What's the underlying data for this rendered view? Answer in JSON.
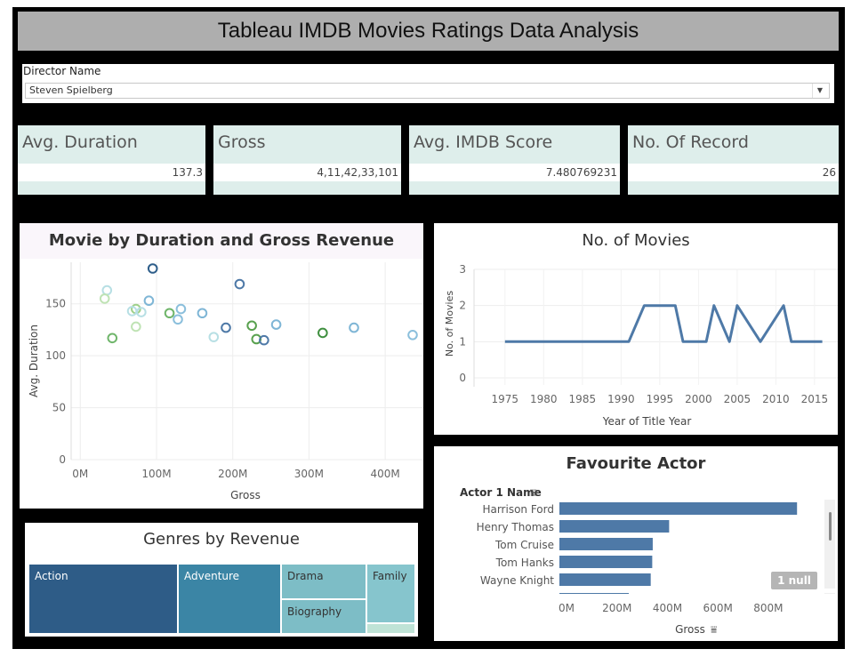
{
  "dashboard": {
    "title": "Tableau IMDB Movies Ratings Data Analysis"
  },
  "filter": {
    "label": "Director Name",
    "value": "Steven Spielberg"
  },
  "kpis": [
    {
      "label": "Avg. Duration",
      "value": "137.3"
    },
    {
      "label": "Gross",
      "value": "4,11,42,33,101"
    },
    {
      "label": "Avg. IMDB Score",
      "value": "7.480769231"
    },
    {
      "label": "No. Of Record",
      "value": "26"
    }
  ],
  "colors": {
    "dark_blue": "#2e5e8a",
    "mid_blue": "#4e79a7",
    "teal": "#3d8fae",
    "light_teal": "#84c3cb",
    "green": "#59a14f",
    "kpi_bg": "#deeeeb"
  },
  "chart_data": [
    {
      "type": "scatter",
      "title": "Movie by Duration and Gross Revenue",
      "xlabel": "Gross",
      "ylabel": "Avg. Duration",
      "x_ticks": [
        "0M",
        "100M",
        "200M",
        "300M",
        "400M"
      ],
      "y_ticks": [
        "0",
        "50",
        "100",
        "150"
      ],
      "xlim": [
        -12,
        450
      ],
      "ylim": [
        0,
        190
      ],
      "grid": true,
      "points": [
        {
          "x": 35,
          "y": 163,
          "color": "#b7dfe4"
        },
        {
          "x": 32,
          "y": 155,
          "color": "#bfe3b4"
        },
        {
          "x": 73,
          "y": 145,
          "color": "#9fd089"
        },
        {
          "x": 68,
          "y": 143,
          "color": "#b7dfe4"
        },
        {
          "x": 80,
          "y": 142,
          "color": "#b7dfe4"
        },
        {
          "x": 90,
          "y": 153,
          "color": "#7fb6d6"
        },
        {
          "x": 95,
          "y": 184,
          "color": "#2e5e8a"
        },
        {
          "x": 73,
          "y": 128,
          "color": "#bfe3b4"
        },
        {
          "x": 42,
          "y": 117,
          "color": "#6fb56a"
        },
        {
          "x": 117,
          "y": 141,
          "color": "#6fb56a"
        },
        {
          "x": 132,
          "y": 145,
          "color": "#8bbfdc"
        },
        {
          "x": 128,
          "y": 135,
          "color": "#8bbfdc"
        },
        {
          "x": 160,
          "y": 141,
          "color": "#7fb6d6"
        },
        {
          "x": 175,
          "y": 118,
          "color": "#b7dfe4"
        },
        {
          "x": 191,
          "y": 127,
          "color": "#4e79a7"
        },
        {
          "x": 209,
          "y": 169,
          "color": "#4e79a7"
        },
        {
          "x": 225,
          "y": 129,
          "color": "#59a14f"
        },
        {
          "x": 231,
          "y": 116,
          "color": "#59a14f"
        },
        {
          "x": 241,
          "y": 115,
          "color": "#4e79a7"
        },
        {
          "x": 257,
          "y": 130,
          "color": "#7fb6d6"
        },
        {
          "x": 318,
          "y": 122,
          "color": "#3f8f3f"
        },
        {
          "x": 359,
          "y": 127,
          "color": "#7fb6d6"
        },
        {
          "x": 436,
          "y": 120,
          "color": "#8bbfdc"
        }
      ]
    },
    {
      "type": "line",
      "title": "No. of Movies",
      "xlabel": "Year of Title Year",
      "ylabel": "No. of Movies",
      "x_ticks": [
        "1975",
        "1980",
        "1985",
        "1990",
        "1995",
        "2000",
        "2005",
        "2010",
        "2015"
      ],
      "y_ticks": [
        "0",
        "1",
        "2",
        "3"
      ],
      "xlim": [
        1971,
        2018
      ],
      "ylim": [
        0,
        3
      ],
      "x": [
        1975,
        1991,
        1993,
        1997,
        1998,
        2001,
        2002,
        2004,
        2005,
        2008,
        2011,
        2012,
        2016
      ],
      "y": [
        1,
        1,
        2,
        2,
        1,
        1,
        2,
        1,
        2,
        1,
        2,
        1,
        1
      ]
    },
    {
      "type": "bar",
      "orientation": "horizontal",
      "title": "Favourite Actor",
      "dimension_label": "Actor 1 Name",
      "xlabel": "Gross",
      "x_ticks": [
        "0M",
        "200M",
        "400M",
        "600M",
        "800M"
      ],
      "xlim": [
        0,
        1040
      ],
      "categories": [
        "Harrison Ford",
        "Henry Thomas",
        "Tom Cruise",
        "Tom Hanks",
        "Wayne Knight"
      ],
      "values": [
        942,
        435,
        370,
        368,
        362
      ],
      "null_label": "1 null"
    },
    {
      "type": "treemap",
      "title": "Genres by Revenue",
      "items": [
        {
          "name": "Action",
          "color": "#2e5c87"
        },
        {
          "name": "Adventure",
          "color": "#3b85a5"
        },
        {
          "name": "Drama",
          "color": "#7dbdc6"
        },
        {
          "name": "Biography",
          "color": "#7dbdc6"
        },
        {
          "name": "Family",
          "color": "#86c5cd"
        }
      ]
    }
  ]
}
